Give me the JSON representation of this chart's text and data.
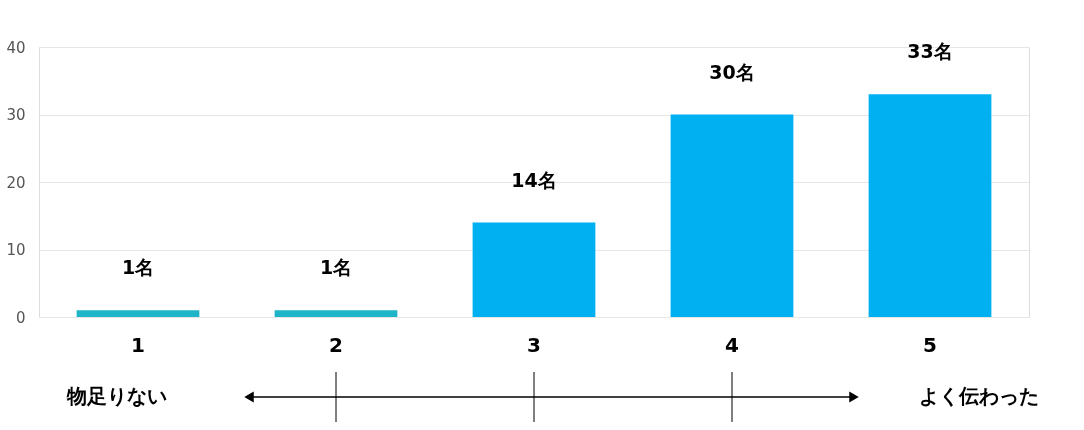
{
  "chart_data": {
    "type": "bar",
    "categories": [
      "1",
      "2",
      "3",
      "4",
      "5"
    ],
    "values": [
      1,
      1,
      14,
      30,
      33
    ],
    "colors": [
      "#1fb5c9",
      "#1fb5c9",
      "#00b0f0",
      "#00b0f0",
      "#00b0f0"
    ],
    "value_labels": [
      "1名",
      "1名",
      "14名",
      "30名",
      "33名"
    ],
    "ylim": [
      0,
      40
    ],
    "yticks": [
      0,
      10,
      20,
      30,
      40
    ],
    "grid": "y",
    "annotations": [
      "物足りない",
      "よく伝わった"
    ]
  }
}
